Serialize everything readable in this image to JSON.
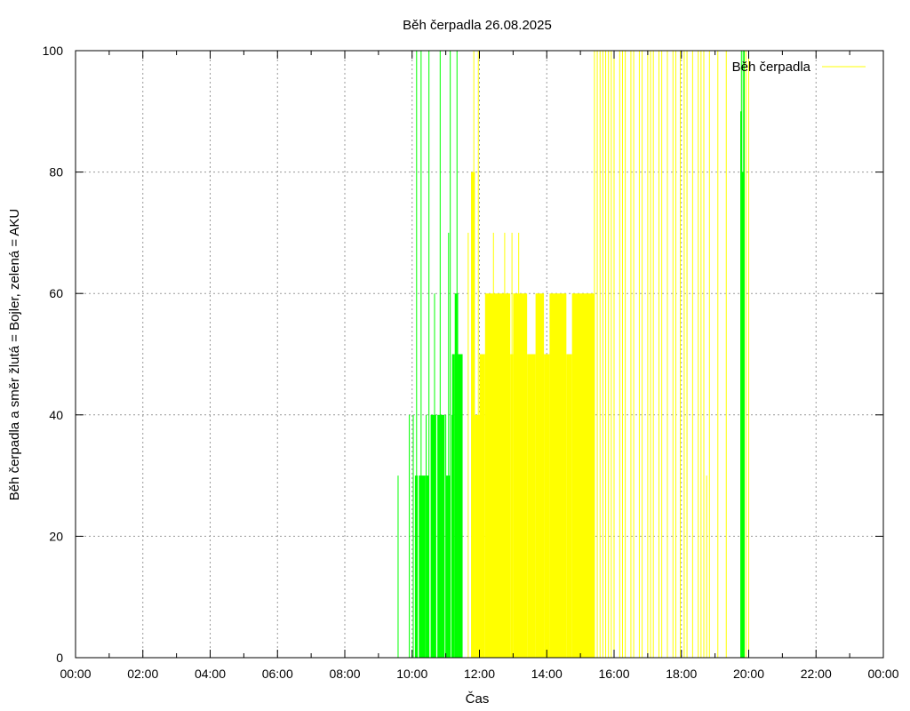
{
  "chart_data": {
    "type": "bar",
    "title": "Běh čerpadla 26.08.2025",
    "xlabel": "Čas",
    "ylabel": "Běh čerpadla a směr žlutá = Bojler, zelená = AKU",
    "xlim": [
      "00:00",
      "24:00"
    ],
    "ylim": [
      0,
      100
    ],
    "x_tick_labels": [
      "00:00",
      "02:00",
      "04:00",
      "06:00",
      "08:00",
      "10:00",
      "12:00",
      "14:00",
      "16:00",
      "18:00",
      "20:00",
      "22:00",
      "00:00"
    ],
    "y_tick_labels": [
      "0",
      "20",
      "40",
      "60",
      "80",
      "100"
    ],
    "grid": true,
    "legend": {
      "position": "top-right",
      "entries": [
        {
          "name": "Běh čerpadla",
          "color": "#ffff00"
        }
      ]
    },
    "colors": {
      "aku": "#00ff00",
      "bojler": "#ffff00"
    },
    "series": [
      {
        "direction": "AKU",
        "color": "#00ff00",
        "spikes": [
          [
            "09:35",
            30
          ],
          [
            "09:55",
            40
          ],
          [
            "10:02",
            40
          ],
          [
            "10:08",
            100
          ],
          [
            "10:16",
            100
          ],
          [
            "10:25",
            40
          ],
          [
            "10:30",
            100
          ],
          [
            "10:40",
            60
          ],
          [
            "10:50",
            100
          ],
          [
            "10:52",
            40
          ],
          [
            "11:00",
            40
          ],
          [
            "11:05",
            70
          ],
          [
            "11:08",
            100
          ],
          [
            "11:12",
            50
          ],
          [
            "11:15",
            50
          ],
          [
            "11:20",
            100
          ],
          [
            "19:47",
            100
          ],
          [
            "19:50",
            100
          ],
          [
            "19:52",
            100
          ]
        ],
        "blocks": [
          [
            "10:05",
            "10:10",
            30
          ],
          [
            "10:12",
            "10:24",
            30
          ],
          [
            "10:25",
            "10:30",
            30
          ],
          [
            "10:33",
            "10:43",
            40
          ],
          [
            "10:45",
            "10:58",
            40
          ],
          [
            "11:00",
            "11:08",
            30
          ],
          [
            "11:10",
            "11:12",
            40
          ],
          [
            "11:12",
            "11:16",
            50
          ],
          [
            "11:16",
            "11:22",
            60
          ],
          [
            "11:22",
            "11:30",
            50
          ],
          [
            "19:45",
            "19:48",
            90
          ],
          [
            "19:48",
            "19:52",
            80
          ]
        ]
      },
      {
        "direction": "Bojler",
        "color": "#ffff00",
        "blocks": [
          [
            "11:45",
            "11:52",
            80
          ],
          [
            "11:52",
            "12:00",
            40
          ],
          [
            "12:00",
            "12:10",
            50
          ],
          [
            "12:10",
            "12:55",
            60
          ],
          [
            "12:55",
            "13:00",
            50
          ],
          [
            "13:00",
            "13:25",
            60
          ],
          [
            "13:25",
            "13:40",
            50
          ],
          [
            "13:40",
            "13:55",
            60
          ],
          [
            "13:55",
            "14:05",
            50
          ],
          [
            "14:05",
            "14:35",
            60
          ],
          [
            "14:35",
            "14:45",
            50
          ],
          [
            "14:45",
            "15:25",
            60
          ]
        ],
        "spikes": [
          [
            "11:40",
            70
          ],
          [
            "11:50",
            100
          ],
          [
            "11:58",
            100
          ],
          [
            "12:25",
            70
          ],
          [
            "12:45",
            70
          ],
          [
            "12:58",
            70
          ],
          [
            "13:10",
            70
          ],
          [
            "15:25",
            100
          ],
          [
            "15:30",
            100
          ],
          [
            "15:35",
            100
          ],
          [
            "15:40",
            100
          ],
          [
            "15:45",
            100
          ],
          [
            "15:50",
            100
          ],
          [
            "15:55",
            100
          ],
          [
            "16:00",
            100
          ],
          [
            "16:10",
            100
          ],
          [
            "16:15",
            100
          ],
          [
            "16:20",
            100
          ],
          [
            "16:30",
            100
          ],
          [
            "16:35",
            100
          ],
          [
            "16:45",
            100
          ],
          [
            "16:50",
            100
          ],
          [
            "17:00",
            100
          ],
          [
            "17:05",
            100
          ],
          [
            "17:10",
            100
          ],
          [
            "17:20",
            100
          ],
          [
            "17:25",
            100
          ],
          [
            "17:35",
            100
          ],
          [
            "17:45",
            100
          ],
          [
            "17:50",
            100
          ],
          [
            "17:58",
            100
          ],
          [
            "18:05",
            100
          ],
          [
            "18:10",
            100
          ],
          [
            "18:20",
            100
          ],
          [
            "18:30",
            100
          ],
          [
            "18:35",
            100
          ],
          [
            "18:40",
            100
          ],
          [
            "18:45",
            30
          ],
          [
            "18:50",
            100
          ],
          [
            "19:05",
            100
          ],
          [
            "19:20",
            100
          ],
          [
            "19:55",
            100
          ],
          [
            "20:00",
            100
          ]
        ]
      }
    ]
  }
}
